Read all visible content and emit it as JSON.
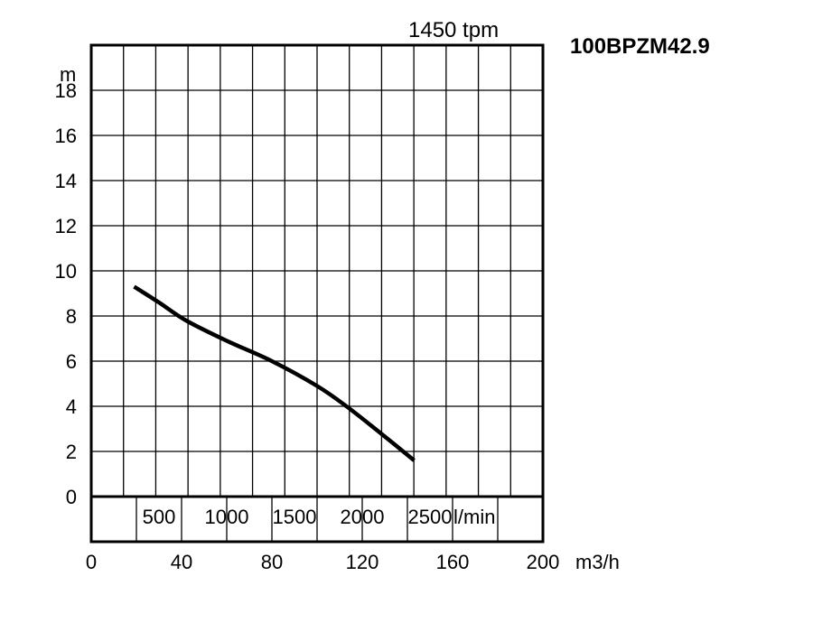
{
  "chart_data": {
    "type": "line",
    "title": "100BPZM42.9",
    "speed_label": "1450 tpm",
    "ylabel": "m",
    "xlabel": "m3/h",
    "secondary_xlabel": "l/min",
    "ylim": [
      0,
      18
    ],
    "xlim": [
      0,
      200
    ],
    "y_ticks": [
      "0",
      "2",
      "4",
      "6",
      "8",
      "10",
      "12",
      "14",
      "16",
      "18"
    ],
    "x_ticks": [
      "0",
      "40",
      "80",
      "120",
      "160",
      "200"
    ],
    "secondary_x_ticks": [
      "500",
      "1000",
      "1500",
      "2000",
      "2500"
    ],
    "grid": true,
    "series": [
      {
        "x": [
          19,
          30,
          42,
          60,
          80,
          100,
          113,
          127,
          143
        ],
        "y": [
          9.3,
          8.6,
          7.8,
          6.9,
          6.0,
          4.9,
          4.0,
          2.9,
          1.6
        ]
      }
    ]
  }
}
